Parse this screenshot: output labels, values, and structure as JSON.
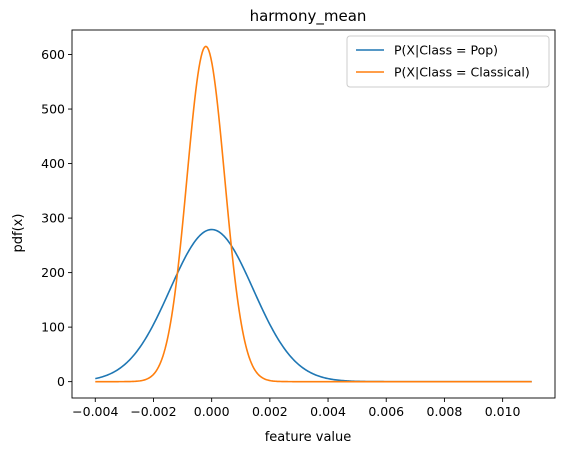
{
  "chart_data": {
    "type": "line",
    "title": "harmony_mean",
    "xlabel": "feature value",
    "ylabel": "pdf(x)",
    "xlim": [
      -0.0048,
      0.0118
    ],
    "ylim": [
      -30,
      645
    ],
    "x_ticks": [
      -0.004,
      -0.002,
      0.0,
      0.002,
      0.004,
      0.006,
      0.008,
      0.01
    ],
    "x_tick_labels": [
      "−0.004",
      "−0.002",
      "0.000",
      "0.002",
      "0.004",
      "0.006",
      "0.008",
      "0.010"
    ],
    "y_ticks": [
      0,
      100,
      200,
      300,
      400,
      500,
      600
    ],
    "y_tick_labels": [
      "0",
      "100",
      "200",
      "300",
      "400",
      "500",
      "600"
    ],
    "x_range": [
      -0.004,
      0.011
    ],
    "grid": false,
    "legend_position": "top-right",
    "series": [
      {
        "name": "P(X|Class = Pop)",
        "color": "#1f77b4",
        "distribution": "normal",
        "mean": 0.0,
        "std": 0.00143,
        "peak": 279
      },
      {
        "name": "P(X|Class = Classical)",
        "color": "#ff7f0e",
        "distribution": "normal",
        "mean": -0.0002,
        "std": 0.00065,
        "peak": 615
      }
    ]
  }
}
